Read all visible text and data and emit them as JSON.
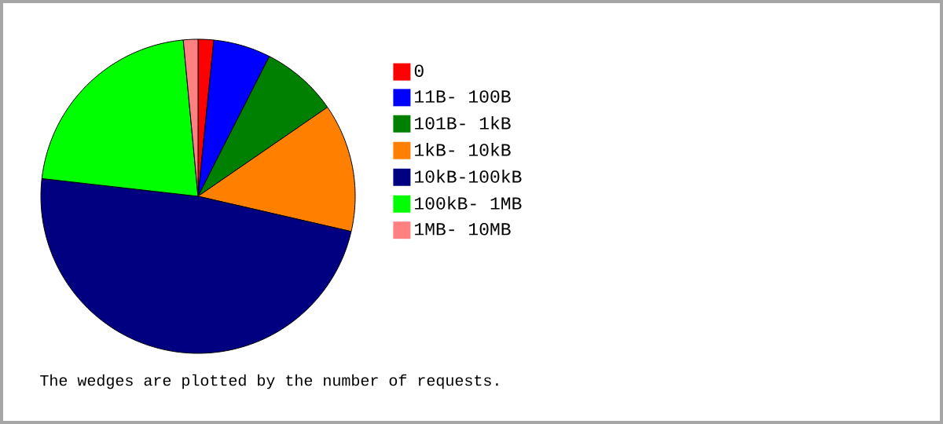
{
  "chart_data": {
    "type": "pie",
    "categories": [
      "0",
      "11B- 100B",
      "101B- 1kB",
      "1kB- 10kB",
      "10kB-100kB",
      "100kB- 1MB",
      "1MB- 10MB"
    ],
    "values": [
      1.6,
      5.9,
      7.9,
      13.2,
      48.2,
      21.7,
      1.5
    ],
    "colors": [
      "#ff0000",
      "#0000ff",
      "#008000",
      "#ff8000",
      "#000080",
      "#00ff00",
      "#ff8080"
    ],
    "legend": "right",
    "annotations": [
      "The wedges are plotted by the number of requests."
    ]
  }
}
